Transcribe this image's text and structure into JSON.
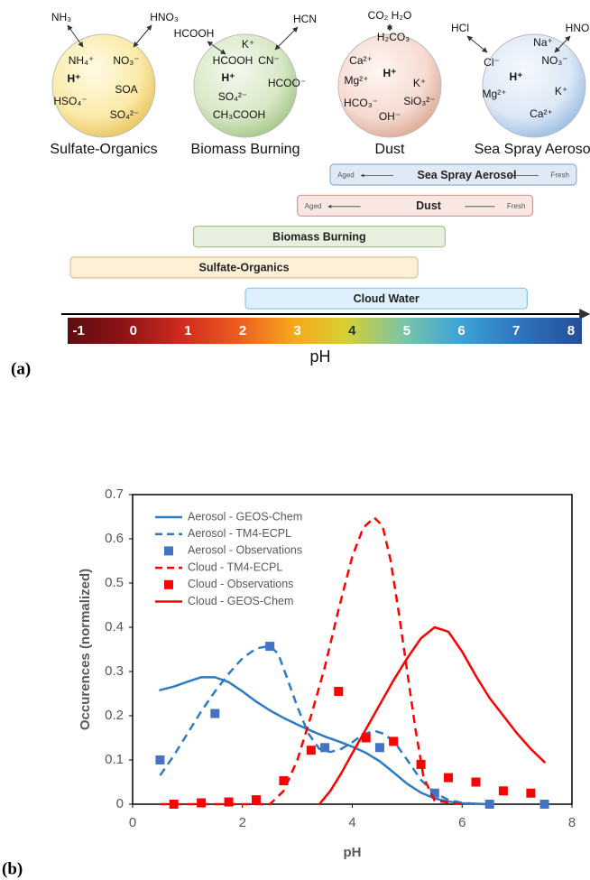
{
  "panel_labels": [
    "(a)",
    "(b)"
  ],
  "diagram": {
    "particles": [
      {
        "name": "Sulfate-Organics",
        "gases": [
          "NH₃",
          "HNO₃"
        ],
        "ions": [
          "NH₄⁺",
          "NO₃⁻",
          "H⁺",
          "SOA",
          "HSO₄⁻",
          "SO₄²⁻"
        ]
      },
      {
        "name": "Biomass Burning",
        "gases": [
          "HCOOH",
          "HCN"
        ],
        "ions": [
          "K⁺",
          "HCOOH",
          "CN⁻",
          "H⁺",
          "HCOO⁻",
          "SO₄²⁻",
          "CH₃COOH"
        ]
      },
      {
        "name": "Dust",
        "gases": [
          "CO₂ H₂O"
        ],
        "ions": [
          "H₂CO₃",
          "Ca²⁺",
          "H⁺",
          "Mg²⁺",
          "K⁺",
          "HCO₃⁻",
          "SiO₃²⁻",
          "OH⁻"
        ]
      },
      {
        "name": "Sea Spray Aerosol",
        "gases": [
          "HCl",
          "HNO"
        ],
        "ions": [
          "Na⁺",
          "Cl⁻",
          "NO₃⁻",
          "H⁺",
          "K⁺",
          "Mg²⁺",
          "Ca²⁺"
        ]
      }
    ]
  },
  "chart_data": [
    {
      "type": "range",
      "xlabel": "pH",
      "xlim": [
        -1.2,
        8.2
      ],
      "xticks": [
        -1,
        0,
        1,
        2,
        3,
        4,
        5,
        6,
        7,
        8
      ],
      "ranges": [
        {
          "name": "Sea Spray Aerosol",
          "from": 3.6,
          "to": 8.1,
          "color": "#dfeaf6",
          "border": "#8eafcf",
          "labels": [
            "Aged",
            "Fresh"
          ]
        },
        {
          "name": "Dust",
          "from": 3.0,
          "to": 7.3,
          "color": "#f9e7e3",
          "border": "#c99a90",
          "labels": [
            "Aged",
            "Fresh"
          ]
        },
        {
          "name": "Biomass Burning",
          "from": 1.1,
          "to": 5.7,
          "color": "#e7f0de",
          "border": "#a8c38e"
        },
        {
          "name": "Sulfate-Organics",
          "from": -1.15,
          "to": 5.2,
          "color": "#fcf1d6",
          "border": "#d8c38a"
        },
        {
          "name": "Cloud Water",
          "from": 2.05,
          "to": 7.2,
          "color": "#ddf0fc",
          "border": "#8ec4e2"
        }
      ]
    },
    {
      "type": "line",
      "xlabel": "pH",
      "ylabel": "Occurences (normalized)",
      "xlim": [
        0,
        8
      ],
      "ylim": [
        0,
        0.7
      ],
      "xticks": [
        0,
        2,
        4,
        6,
        8
      ],
      "yticks": [
        0,
        0.1,
        0.2,
        0.3,
        0.4,
        0.5,
        0.6,
        0.7
      ],
      "legend": "upper left",
      "series": [
        {
          "name": "Aerosol - GEOS-Chem",
          "color": "#2e7bc4",
          "style": "solid",
          "x": [
            0.5,
            0.75,
            1,
            1.25,
            1.5,
            1.75,
            2,
            2.25,
            2.5,
            2.75,
            3,
            3.25,
            3.5,
            3.75,
            4,
            4.25,
            4.5,
            4.75,
            5,
            5.25,
            5.5,
            5.75,
            6,
            6.25,
            6.5
          ],
          "values": [
            0.258,
            0.266,
            0.277,
            0.287,
            0.287,
            0.276,
            0.255,
            0.232,
            0.212,
            0.195,
            0.18,
            0.166,
            0.153,
            0.142,
            0.13,
            0.116,
            0.097,
            0.072,
            0.046,
            0.026,
            0.013,
            0.006,
            0.002,
            0.001,
            0
          ]
        },
        {
          "name": "Aerosol - TM4-ECPL",
          "color": "#2e7bc4",
          "style": "dashed",
          "x": [
            0.5,
            0.75,
            1,
            1.25,
            1.5,
            1.75,
            2,
            2.25,
            2.5,
            2.65,
            2.8,
            3,
            3.2,
            3.4,
            3.6,
            3.8,
            4,
            4.2,
            4.4,
            4.6,
            4.8,
            5,
            5.25,
            5.5,
            5.75,
            6,
            6.25,
            6.5
          ],
          "values": [
            0.065,
            0.11,
            0.16,
            0.21,
            0.255,
            0.295,
            0.33,
            0.352,
            0.358,
            0.34,
            0.29,
            0.22,
            0.16,
            0.125,
            0.118,
            0.125,
            0.14,
            0.158,
            0.166,
            0.158,
            0.135,
            0.1,
            0.055,
            0.025,
            0.01,
            0.003,
            0.001,
            0
          ]
        },
        {
          "name": "Aerosol - Observations",
          "color": "#4472c4",
          "style": "markers",
          "x": [
            0.5,
            1.5,
            2.5,
            3.5,
            4.5,
            5.5,
            6.5,
            7.5
          ],
          "values": [
            0.1,
            0.205,
            0.357,
            0.128,
            0.128,
            0.025,
            0,
            0
          ]
        },
        {
          "name": "Cloud - TM4-ECPL",
          "color": "#ff0000",
          "style": "dashed",
          "x": [
            0.5,
            1,
            1.5,
            2,
            2.5,
            2.75,
            3,
            3.25,
            3.5,
            3.75,
            4,
            4.2,
            4.4,
            4.55,
            4.7,
            4.85,
            5,
            5.15,
            5.3,
            5.5,
            6
          ],
          "values": [
            0,
            0,
            0,
            0,
            0,
            0.03,
            0.1,
            0.2,
            0.31,
            0.44,
            0.56,
            0.625,
            0.648,
            0.63,
            0.55,
            0.43,
            0.3,
            0.17,
            0.06,
            0.008,
            0
          ]
        },
        {
          "name": "Cloud - Observations",
          "color": "#ff0000",
          "style": "markers",
          "x": [
            0.75,
            1.25,
            1.75,
            2.25,
            2.75,
            3.25,
            3.75,
            4.25,
            4.75,
            5.25,
            5.75,
            6.25,
            6.75,
            7.25
          ],
          "values": [
            0,
            0.003,
            0.005,
            0.01,
            0.053,
            0.122,
            0.255,
            0.15,
            0.142,
            0.09,
            0.06,
            0.05,
            0.03,
            0.025
          ]
        },
        {
          "name": "Cloud - GEOS-Chem",
          "color": "#ff0000",
          "style": "solid",
          "x": [
            3.4,
            3.6,
            3.8,
            4,
            4.25,
            4.5,
            4.75,
            5,
            5.25,
            5.5,
            5.75,
            6,
            6.25,
            6.5,
            6.75,
            7,
            7.25,
            7.5
          ],
          "values": [
            0,
            0.03,
            0.07,
            0.115,
            0.17,
            0.225,
            0.28,
            0.33,
            0.375,
            0.4,
            0.39,
            0.345,
            0.29,
            0.24,
            0.2,
            0.16,
            0.125,
            0.095
          ]
        }
      ]
    }
  ]
}
